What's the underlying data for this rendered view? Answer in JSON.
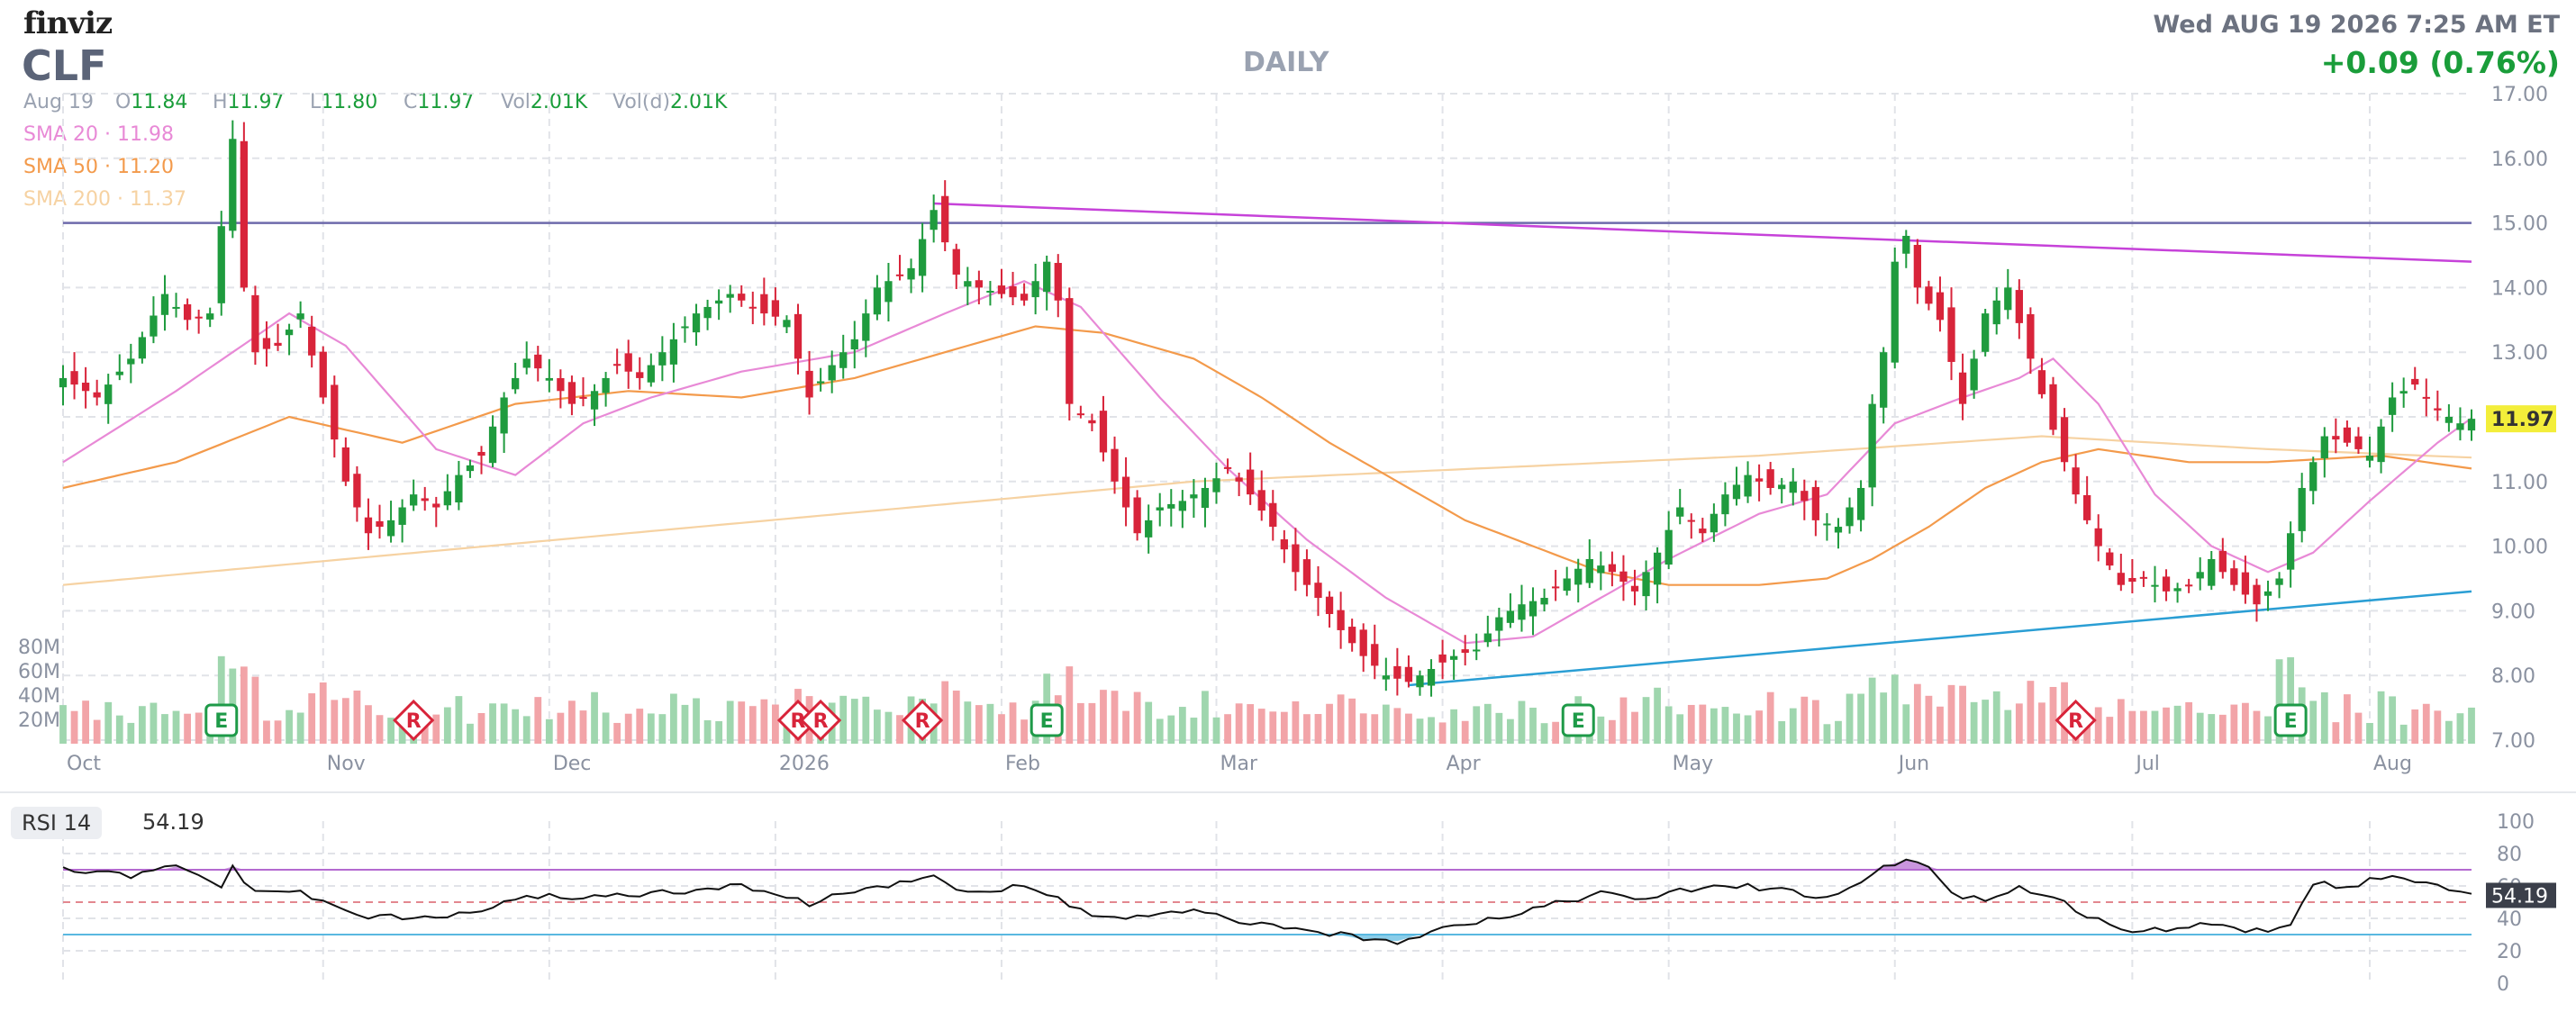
{
  "header": {
    "brand": "finviz",
    "ticker": "CLF",
    "timeframe": "DAILY",
    "datetime": "Wed AUG 19 2026 7:25 AM ET",
    "change": "+0.09 (0.76%)",
    "ohlc": {
      "date": "Aug 19",
      "open_label": "O",
      "open": "11.84",
      "high_label": "H",
      "high": "11.97",
      "low_label": "L",
      "low": "11.80",
      "close_label": "C",
      "close": "11.97",
      "vol_label": "Vol",
      "vol": "2.01K",
      "vold_label": "Vol(d)",
      "vold": "2.01K"
    },
    "sma": [
      {
        "label": "SMA 20",
        "value": "11.98",
        "color": "#e889d6"
      },
      {
        "label": "SMA 50",
        "value": "11.20",
        "color": "#f39a4b"
      },
      {
        "label": "SMA 200",
        "value": "11.37",
        "color": "#f6d2a2"
      }
    ]
  },
  "colors": {
    "up": "#1f9b3e",
    "down": "#d8243a",
    "vol_up": "#9fd6ae",
    "vol_down": "#f2a4a8",
    "resistance": "#6e6aab",
    "down_trend": "#c642d9",
    "up_trend": "#2a9ed4",
    "grid": "#e1e3e8",
    "price_tag": "#f3ee3a",
    "rsi_line": "#111111",
    "rsi_overbought": "#b46ad0",
    "rsi_oversold": "#59b8e0"
  },
  "chart_data": [
    {
      "type": "candlestick",
      "price_axis": {
        "min": 7.0,
        "max": 17.0,
        "ticks": [
          "7.00",
          "8.00",
          "9.00",
          "10.00",
          "11.00",
          "12.00",
          "13.00",
          "14.00",
          "15.00",
          "16.00",
          "17.00"
        ]
      },
      "last_price_tag": "11.97",
      "volume_axis": {
        "max": 80,
        "unit": "M",
        "ticks": [
          "20M",
          "40M",
          "60M",
          "80M"
        ]
      },
      "x_labels": [
        {
          "label": "Oct",
          "i": 0
        },
        {
          "label": "Nov",
          "i": 23
        },
        {
          "label": "Dec",
          "i": 43
        },
        {
          "label": "2026",
          "i": 63
        },
        {
          "label": "Feb",
          "i": 83
        },
        {
          "label": "Mar",
          "i": 102
        },
        {
          "label": "Apr",
          "i": 122
        },
        {
          "label": "May",
          "i": 142
        },
        {
          "label": "Jun",
          "i": 162
        },
        {
          "label": "Jul",
          "i": 183
        },
        {
          "label": "Aug",
          "i": 204
        }
      ],
      "num_bars": 214,
      "close_points": [
        [
          0,
          12.6
        ],
        [
          3,
          12.3
        ],
        [
          6,
          12.9
        ],
        [
          9,
          13.9
        ],
        [
          11,
          13.5
        ],
        [
          13,
          13.6
        ],
        [
          15,
          16.3
        ],
        [
          16,
          14.0
        ],
        [
          17,
          13.0
        ],
        [
          19,
          13.1
        ],
        [
          21,
          13.6
        ],
        [
          23,
          12.3
        ],
        [
          25,
          11.0
        ],
        [
          27,
          10.2
        ],
        [
          29,
          10.4
        ],
        [
          31,
          10.8
        ],
        [
          33,
          10.6
        ],
        [
          35,
          11.1
        ],
        [
          37,
          11.4
        ],
        [
          39,
          12.3
        ],
        [
          41,
          12.9
        ],
        [
          43,
          12.6
        ],
        [
          45,
          12.2
        ],
        [
          47,
          12.4
        ],
        [
          49,
          12.8
        ],
        [
          51,
          12.6
        ],
        [
          53,
          13.0
        ],
        [
          56,
          13.6
        ],
        [
          59,
          13.9
        ],
        [
          62,
          13.6
        ],
        [
          64,
          13.5
        ],
        [
          66,
          12.3
        ],
        [
          68,
          12.8
        ],
        [
          70,
          13.2
        ],
        [
          72,
          14.0
        ],
        [
          75,
          14.3
        ],
        [
          77,
          15.2
        ],
        [
          79,
          14.2
        ],
        [
          81,
          14.0
        ],
        [
          83,
          13.9
        ],
        [
          85,
          13.8
        ],
        [
          87,
          14.4
        ],
        [
          88,
          13.8
        ],
        [
          89,
          12.2
        ],
        [
          91,
          11.9
        ],
        [
          93,
          11.0
        ],
        [
          95,
          10.2
        ],
        [
          97,
          10.6
        ],
        [
          99,
          10.7
        ],
        [
          101,
          10.9
        ],
        [
          103,
          11.2
        ],
        [
          105,
          10.8
        ],
        [
          107,
          10.3
        ],
        [
          109,
          9.6
        ],
        [
          111,
          9.2
        ],
        [
          113,
          8.7
        ],
        [
          115,
          8.3
        ],
        [
          117,
          8.0
        ],
        [
          119,
          7.9
        ],
        [
          121,
          8.1
        ],
        [
          123,
          8.3
        ],
        [
          125,
          8.4
        ],
        [
          127,
          8.9
        ],
        [
          129,
          9.1
        ],
        [
          131,
          9.2
        ],
        [
          133,
          9.5
        ],
        [
          135,
          9.8
        ],
        [
          137,
          9.6
        ],
        [
          139,
          9.3
        ],
        [
          141,
          9.9
        ],
        [
          143,
          10.6
        ],
        [
          145,
          10.2
        ],
        [
          147,
          10.8
        ],
        [
          149,
          11.1
        ],
        [
          151,
          10.9
        ],
        [
          153,
          11.0
        ],
        [
          155,
          10.4
        ],
        [
          157,
          10.3
        ],
        [
          159,
          10.9
        ],
        [
          160,
          12.2
        ],
        [
          161,
          13.0
        ],
        [
          162,
          14.4
        ],
        [
          163,
          14.8
        ],
        [
          164,
          14.0
        ],
        [
          166,
          13.5
        ],
        [
          168,
          12.2
        ],
        [
          170,
          13.6
        ],
        [
          172,
          14.0
        ],
        [
          174,
          12.9
        ],
        [
          176,
          11.8
        ],
        [
          178,
          10.8
        ],
        [
          180,
          10.0
        ],
        [
          182,
          9.4
        ],
        [
          184,
          9.5
        ],
        [
          186,
          9.3
        ],
        [
          188,
          9.4
        ],
        [
          190,
          9.8
        ],
        [
          192,
          9.4
        ],
        [
          194,
          9.1
        ],
        [
          196,
          9.5
        ],
        [
          198,
          10.9
        ],
        [
          200,
          11.7
        ],
        [
          202,
          11.6
        ],
        [
          204,
          11.4
        ],
        [
          206,
          12.3
        ],
        [
          208,
          12.5
        ],
        [
          210,
          12.1
        ],
        [
          212,
          11.9
        ],
        [
          213,
          11.97
        ]
      ],
      "sma20_points": [
        [
          0,
          11.3
        ],
        [
          10,
          12.4
        ],
        [
          20,
          13.6
        ],
        [
          25,
          13.1
        ],
        [
          33,
          11.5
        ],
        [
          40,
          11.1
        ],
        [
          46,
          11.9
        ],
        [
          52,
          12.3
        ],
        [
          60,
          12.7
        ],
        [
          70,
          13.0
        ],
        [
          78,
          13.6
        ],
        [
          85,
          14.1
        ],
        [
          90,
          13.7
        ],
        [
          97,
          12.3
        ],
        [
          103,
          11.2
        ],
        [
          110,
          10.1
        ],
        [
          117,
          9.2
        ],
        [
          124,
          8.5
        ],
        [
          130,
          8.6
        ],
        [
          136,
          9.2
        ],
        [
          142,
          9.8
        ],
        [
          150,
          10.5
        ],
        [
          156,
          10.8
        ],
        [
          162,
          11.9
        ],
        [
          168,
          12.3
        ],
        [
          173,
          12.6
        ],
        [
          176,
          12.9
        ],
        [
          180,
          12.2
        ],
        [
          185,
          10.8
        ],
        [
          190,
          10.0
        ],
        [
          195,
          9.6
        ],
        [
          199,
          9.9
        ],
        [
          204,
          10.7
        ],
        [
          210,
          11.6
        ],
        [
          213,
          11.98
        ]
      ],
      "sma50_points": [
        [
          0,
          10.9
        ],
        [
          10,
          11.3
        ],
        [
          20,
          12.0
        ],
        [
          30,
          11.6
        ],
        [
          40,
          12.2
        ],
        [
          50,
          12.4
        ],
        [
          60,
          12.3
        ],
        [
          70,
          12.6
        ],
        [
          80,
          13.1
        ],
        [
          86,
          13.4
        ],
        [
          92,
          13.3
        ],
        [
          100,
          12.9
        ],
        [
          106,
          12.3
        ],
        [
          112,
          11.6
        ],
        [
          118,
          11.0
        ],
        [
          124,
          10.4
        ],
        [
          130,
          10.0
        ],
        [
          136,
          9.6
        ],
        [
          142,
          9.4
        ],
        [
          150,
          9.4
        ],
        [
          156,
          9.5
        ],
        [
          160,
          9.8
        ],
        [
          165,
          10.3
        ],
        [
          170,
          10.9
        ],
        [
          175,
          11.3
        ],
        [
          180,
          11.5
        ],
        [
          188,
          11.3
        ],
        [
          195,
          11.3
        ],
        [
          205,
          11.4
        ],
        [
          213,
          11.2
        ]
      ],
      "sma200_points": [
        [
          0,
          9.4
        ],
        [
          25,
          9.8
        ],
        [
          50,
          10.2
        ],
        [
          75,
          10.6
        ],
        [
          100,
          11.0
        ],
        [
          125,
          11.2
        ],
        [
          150,
          11.4
        ],
        [
          175,
          11.7
        ],
        [
          195,
          11.5
        ],
        [
          213,
          11.37
        ]
      ],
      "trendlines": [
        {
          "name": "resistance",
          "from": [
            0,
            15.0
          ],
          "to": [
            213,
            15.0
          ]
        },
        {
          "name": "down_trend",
          "from": [
            77,
            15.3
          ],
          "to": [
            213,
            14.4
          ]
        },
        {
          "name": "up_trend",
          "from": [
            119,
            7.85
          ],
          "to": [
            213,
            9.3
          ]
        }
      ],
      "event_markers": [
        {
          "i": 14,
          "label": "E",
          "kind": "earnings"
        },
        {
          "i": 31,
          "label": "R",
          "kind": "revision"
        },
        {
          "i": 65,
          "label": "R",
          "kind": "revision"
        },
        {
          "i": 67,
          "label": "R",
          "kind": "revision"
        },
        {
          "i": 76,
          "label": "R",
          "kind": "revision"
        },
        {
          "i": 87,
          "label": "E",
          "kind": "earnings"
        },
        {
          "i": 134,
          "label": "E",
          "kind": "earnings"
        },
        {
          "i": 178,
          "label": "R",
          "kind": "revision"
        },
        {
          "i": 197,
          "label": "E",
          "kind": "earnings"
        }
      ]
    },
    {
      "type": "line",
      "title": "RSI 14",
      "value": "54.19",
      "y_range": [
        0,
        100
      ],
      "ticks": [
        "0",
        "20",
        "40",
        "60",
        "80",
        "100"
      ],
      "overbought": 70,
      "oversold": 30,
      "midline": 50,
      "points": [
        [
          0,
          70
        ],
        [
          6,
          66
        ],
        [
          10,
          72
        ],
        [
          14,
          60
        ],
        [
          15,
          72
        ],
        [
          17,
          55
        ],
        [
          20,
          58
        ],
        [
          23,
          50
        ],
        [
          26,
          42
        ],
        [
          30,
          40
        ],
        [
          34,
          41
        ],
        [
          38,
          47
        ],
        [
          42,
          54
        ],
        [
          46,
          53
        ],
        [
          50,
          55
        ],
        [
          55,
          56
        ],
        [
          60,
          60
        ],
        [
          63,
          56
        ],
        [
          66,
          48
        ],
        [
          68,
          55
        ],
        [
          71,
          58
        ],
        [
          75,
          62
        ],
        [
          77,
          68
        ],
        [
          79,
          58
        ],
        [
          82,
          56
        ],
        [
          85,
          60
        ],
        [
          88,
          52
        ],
        [
          91,
          42
        ],
        [
          94,
          40
        ],
        [
          97,
          42
        ],
        [
          100,
          44
        ],
        [
          103,
          40
        ],
        [
          106,
          36
        ],
        [
          109,
          32
        ],
        [
          112,
          31
        ],
        [
          115,
          27
        ],
        [
          118,
          26
        ],
        [
          120,
          30
        ],
        [
          122,
          36
        ],
        [
          125,
          38
        ],
        [
          128,
          42
        ],
        [
          132,
          50
        ],
        [
          136,
          55
        ],
        [
          140,
          52
        ],
        [
          144,
          58
        ],
        [
          148,
          60
        ],
        [
          152,
          58
        ],
        [
          156,
          52
        ],
        [
          159,
          62
        ],
        [
          161,
          72
        ],
        [
          163,
          76
        ],
        [
          165,
          72
        ],
        [
          167,
          56
        ],
        [
          170,
          50
        ],
        [
          173,
          58
        ],
        [
          176,
          55
        ],
        [
          178,
          45
        ],
        [
          181,
          36
        ],
        [
          184,
          32
        ],
        [
          186,
          34
        ],
        [
          189,
          36
        ],
        [
          192,
          34
        ],
        [
          195,
          32
        ],
        [
          197,
          36
        ],
        [
          199,
          62
        ],
        [
          202,
          60
        ],
        [
          206,
          66
        ],
        [
          210,
          60
        ],
        [
          212,
          56
        ],
        [
          213,
          54.19
        ]
      ]
    }
  ]
}
